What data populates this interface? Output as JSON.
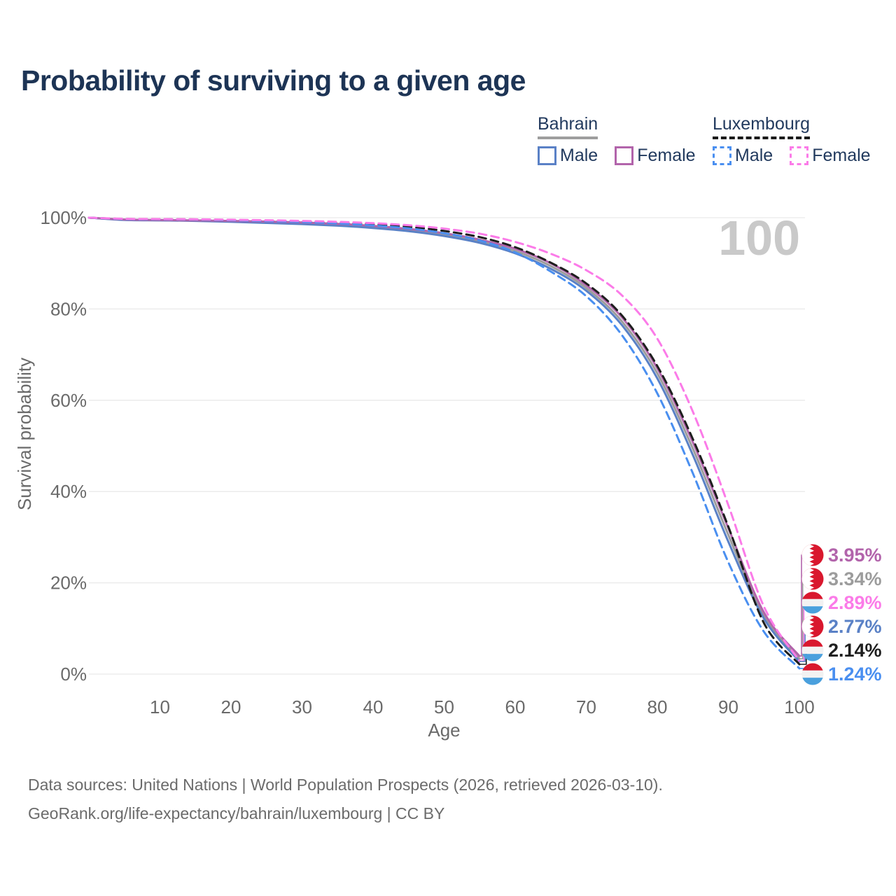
{
  "title": "Probability of surviving to a given age",
  "watermark": "100",
  "legend": {
    "groups": [
      {
        "name": "Bahrain",
        "line_style": "solid",
        "underline_color": "#9e9e9e",
        "items": [
          {
            "label": "Male",
            "color": "#5a81c6",
            "dashed": false
          },
          {
            "label": "Female",
            "color": "#b264ab",
            "dashed": false
          }
        ]
      },
      {
        "name": "Luxembourg",
        "line_style": "dashed",
        "underline_color": "#1a1a1a",
        "items": [
          {
            "label": "Male",
            "color": "#4a8ff0",
            "dashed": true
          },
          {
            "label": "Female",
            "color": "#fb7be8",
            "dashed": true
          }
        ]
      }
    ]
  },
  "chart_data": {
    "type": "line",
    "title": "Probability of surviving to a given age",
    "xlabel": "Age",
    "ylabel": "Survival probability",
    "xlim": [
      0,
      100
    ],
    "ylim": [
      0,
      100
    ],
    "grid": "horizontal",
    "legend_position": "top-right",
    "x_ticks": [
      10,
      20,
      30,
      40,
      50,
      60,
      70,
      80,
      90,
      100
    ],
    "y_ticks": [
      {
        "v": 0,
        "label": "0%"
      },
      {
        "v": 20,
        "label": "20%"
      },
      {
        "v": 40,
        "label": "40%"
      },
      {
        "v": 60,
        "label": "60%"
      },
      {
        "v": 80,
        "label": "80%"
      },
      {
        "v": 100,
        "label": "100%"
      }
    ],
    "x": [
      0,
      5,
      10,
      15,
      20,
      25,
      30,
      35,
      40,
      45,
      50,
      55,
      60,
      65,
      70,
      75,
      80,
      85,
      90,
      95,
      100
    ],
    "series": [
      {
        "name": "Bahrain Male",
        "country": "Bahrain",
        "sex": "Male",
        "color": "#5a81c6",
        "dashed": false,
        "values": [
          100,
          99.5,
          99.4,
          99.3,
          99.1,
          98.85,
          98.6,
          98.25,
          97.75,
          97.05,
          96.0,
          94.5,
          92.2,
          88.8,
          84.0,
          76.5,
          64.8,
          48.0,
          29.0,
          12.2,
          2.77
        ]
      },
      {
        "name": "Bahrain Female",
        "country": "Bahrain",
        "sex": "Female",
        "color": "#b264ab",
        "dashed": false,
        "values": [
          100,
          99.6,
          99.5,
          99.4,
          99.3,
          99.15,
          98.95,
          98.65,
          98.2,
          97.55,
          96.6,
          95.2,
          93.2,
          90.0,
          85.2,
          78.2,
          67.0,
          50.8,
          32.0,
          13.5,
          3.95
        ]
      },
      {
        "name": "Bahrain Both sexes",
        "country": "Bahrain",
        "sex": "Both",
        "color": "#9c9c9c",
        "dashed": false,
        "values": [
          100,
          99.55,
          99.45,
          99.35,
          99.2,
          99.0,
          98.78,
          98.45,
          97.98,
          97.3,
          96.3,
          94.85,
          92.7,
          89.4,
          84.6,
          77.3,
          65.9,
          49.4,
          30.5,
          12.8,
          3.34
        ]
      },
      {
        "name": "Luxembourg Male",
        "country": "Luxembourg",
        "sex": "Male",
        "color": "#4a8ff0",
        "dashed": true,
        "values": [
          100,
          99.7,
          99.65,
          99.6,
          99.45,
          99.25,
          99.05,
          98.75,
          98.3,
          97.65,
          96.6,
          95.0,
          92.4,
          88.2,
          82.8,
          74.3,
          61.5,
          44.0,
          24.5,
          9.3,
          1.24
        ]
      },
      {
        "name": "Luxembourg Both sexes",
        "country": "Luxembourg",
        "sex": "Both",
        "color": "#1e1e1e",
        "dashed": true,
        "values": [
          100,
          99.72,
          99.68,
          99.62,
          99.5,
          99.35,
          99.18,
          98.92,
          98.55,
          98.0,
          97.1,
          95.75,
          93.55,
          90.15,
          85.6,
          78.6,
          67.5,
          51.5,
          32.3,
          11.2,
          2.14
        ]
      },
      {
        "name": "Luxembourg Female",
        "country": "Luxembourg",
        "sex": "Female",
        "color": "#fb7be8",
        "dashed": true,
        "values": [
          100,
          99.75,
          99.7,
          99.65,
          99.55,
          99.45,
          99.3,
          99.1,
          98.8,
          98.35,
          97.6,
          96.5,
          94.7,
          92.1,
          88.5,
          83.0,
          73.5,
          57.5,
          37.0,
          14.8,
          2.89
        ]
      }
    ],
    "end_labels": [
      {
        "text": "3.95%",
        "series": "Bahrain Female",
        "flag": "bahrain",
        "color": "#b264ab"
      },
      {
        "text": "3.34%",
        "series": "Bahrain Both sexes",
        "flag": "bahrain",
        "color": "#9c9c9c"
      },
      {
        "text": "2.89%",
        "series": "Luxembourg Female",
        "flag": "luxembourg",
        "color": "#fb7be8"
      },
      {
        "text": "2.77%",
        "series": "Bahrain Male",
        "flag": "bahrain",
        "color": "#5a81c6"
      },
      {
        "text": "2.14%",
        "series": "Luxembourg Both sexes",
        "flag": "luxembourg",
        "color": "#1e1e1e"
      },
      {
        "text": "1.24%",
        "series": "Luxembourg Male",
        "flag": "luxembourg",
        "color": "#4a8ff0"
      }
    ],
    "flag_colors": {
      "bahrain_red": "#d9182e",
      "luxembourg_red": "#d9182e",
      "luxembourg_blue": "#4aa0dd",
      "white": "#f2f2f2"
    }
  },
  "footer": {
    "line1": "Data sources: United Nations | World Population Prospects (2026, retrieved 2026-03-10).",
    "line2": "GeoRank.org/life-expectancy/bahrain/luxembourg | CC BY"
  }
}
